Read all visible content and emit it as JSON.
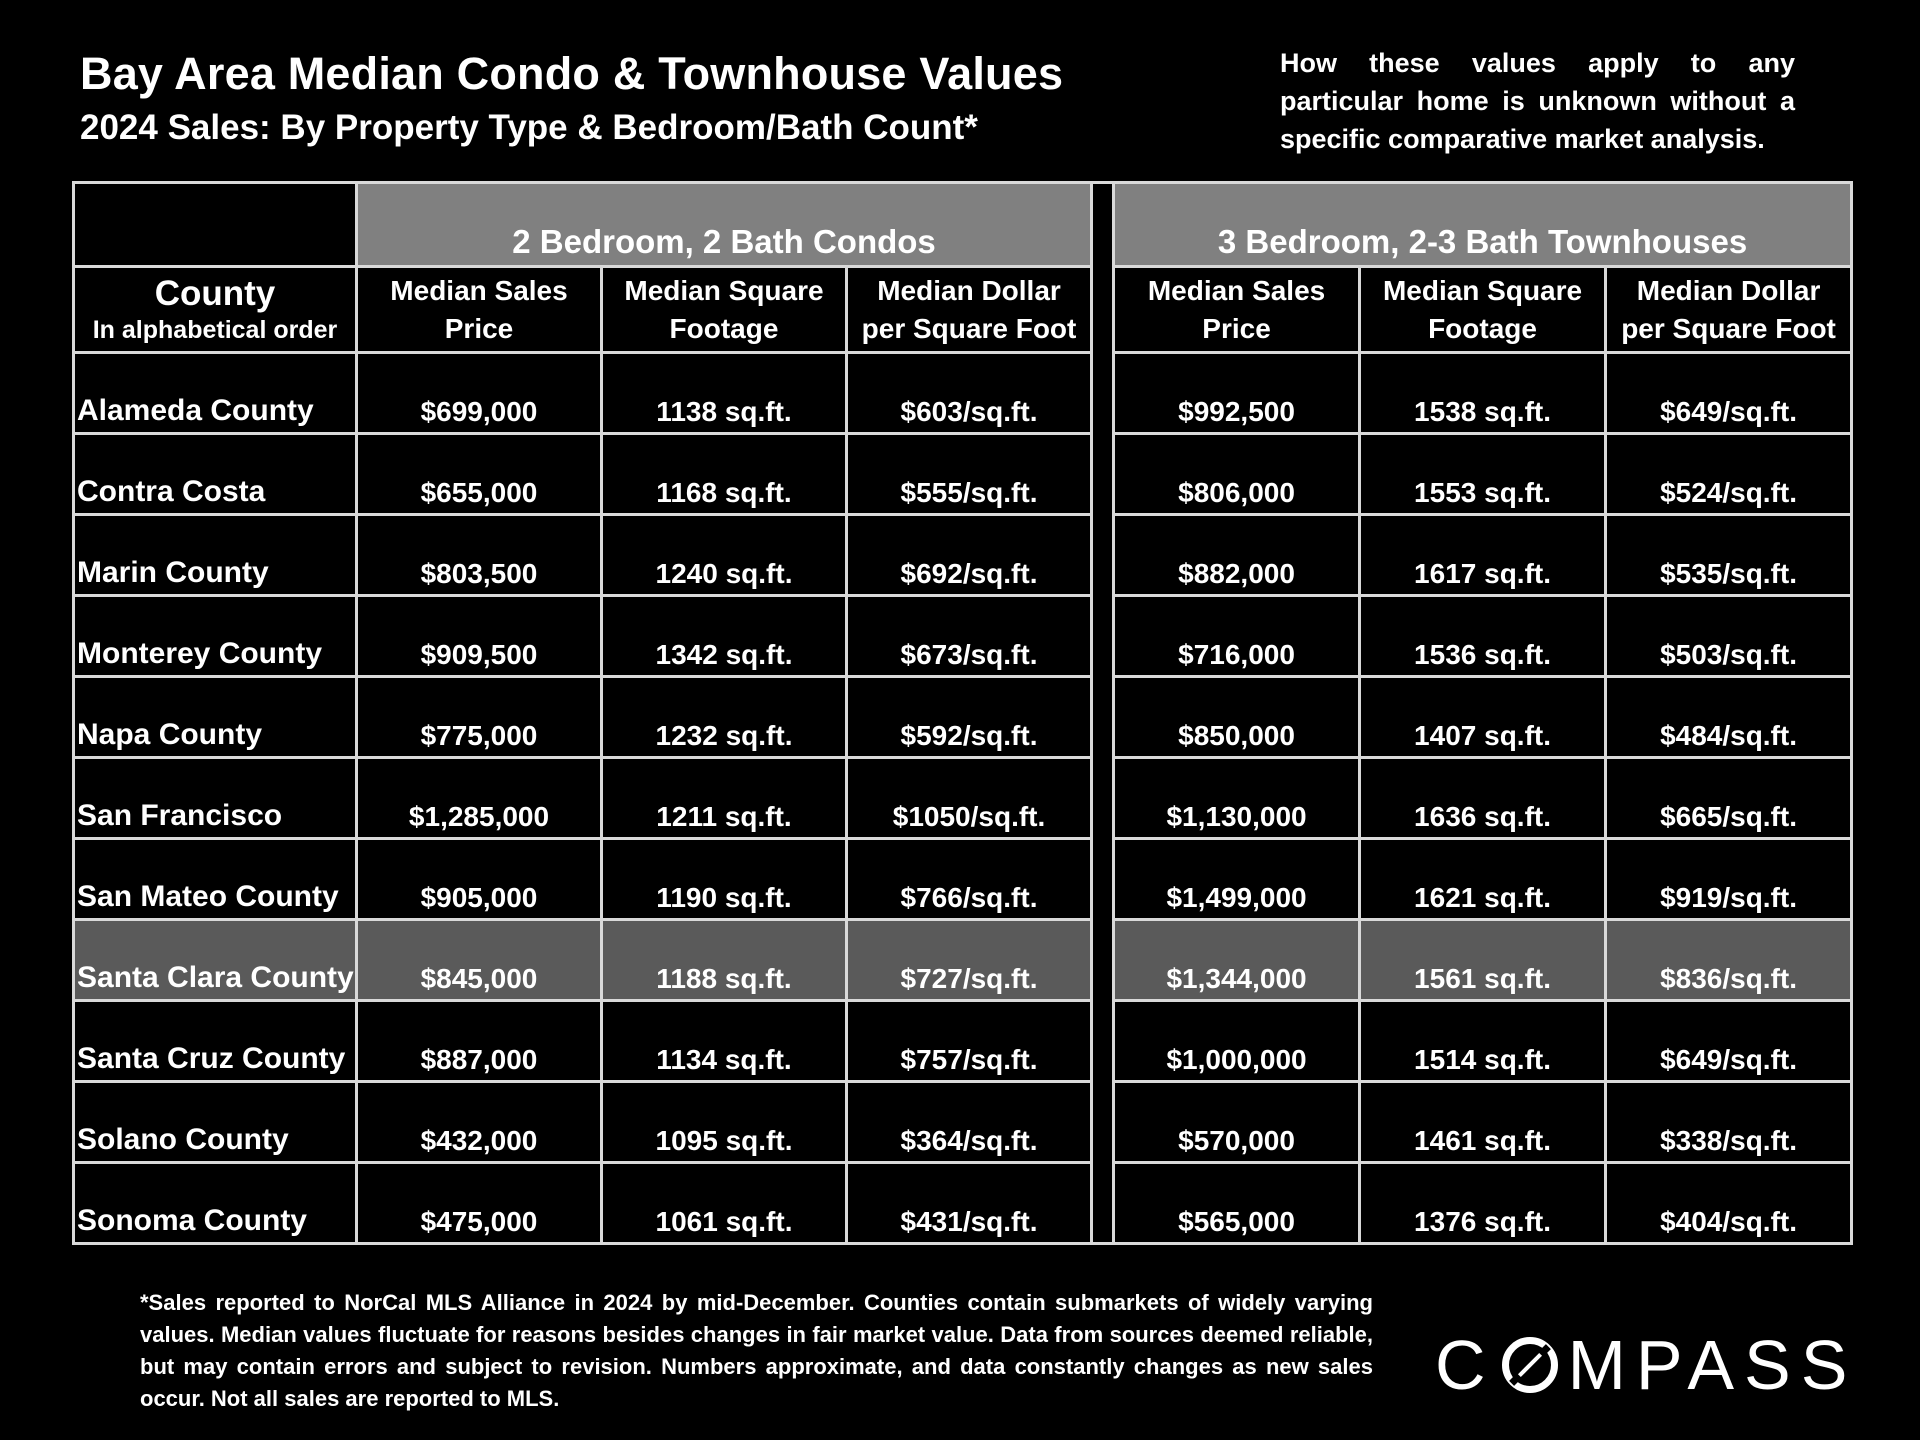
{
  "header": {
    "title": "Bay Area Median Condo & Townhouse Values",
    "subtitle": "2024 Sales:  By Property Type & Bedroom/Bath Count*",
    "disclaimer": "How these values apply to any particular home is unknown without a specific comparative market analysis."
  },
  "chart_data": {
    "type": "table",
    "groups": [
      "2 Bedroom, 2 Bath Condos",
      "3 Bedroom, 2-3 Bath Townhouses"
    ],
    "county_header": "County",
    "county_subheader": "In alphabetical order",
    "columns": [
      [
        "Median Sales",
        "Price"
      ],
      [
        "Median Square",
        "Footage"
      ],
      [
        "Median Dollar",
        "per Square Foot"
      ],
      [
        "Median Sales",
        "Price"
      ],
      [
        "Median Square",
        "Footage"
      ],
      [
        "Median Dollar",
        "per Square Foot"
      ]
    ],
    "rows": [
      {
        "county": "Alameda County",
        "values": [
          "$699,000",
          "1138 sq.ft.",
          "$603/sq.ft.",
          "$992,500",
          "1538 sq.ft.",
          "$649/sq.ft."
        ]
      },
      {
        "county": "Contra Costa",
        "values": [
          "$655,000",
          "1168 sq.ft.",
          "$555/sq.ft.",
          "$806,000",
          "1553 sq.ft.",
          "$524/sq.ft."
        ]
      },
      {
        "county": "Marin County",
        "values": [
          "$803,500",
          "1240 sq.ft.",
          "$692/sq.ft.",
          "$882,000",
          "1617 sq.ft.",
          "$535/sq.ft."
        ]
      },
      {
        "county": "Monterey County",
        "values": [
          "$909,500",
          "1342 sq.ft.",
          "$673/sq.ft.",
          "$716,000",
          "1536 sq.ft.",
          "$503/sq.ft."
        ]
      },
      {
        "county": "Napa County",
        "values": [
          "$775,000",
          "1232 sq.ft.",
          "$592/sq.ft.",
          "$850,000",
          "1407 sq.ft.",
          "$484/sq.ft."
        ]
      },
      {
        "county": "San Francisco",
        "values": [
          "$1,285,000",
          "1211 sq.ft.",
          "$1050/sq.ft.",
          "$1,130,000",
          "1636 sq.ft.",
          "$665/sq.ft."
        ]
      },
      {
        "county": "San Mateo County",
        "values": [
          "$905,000",
          "1190 sq.ft.",
          "$766/sq.ft.",
          "$1,499,000",
          "1621 sq.ft.",
          "$919/sq.ft."
        ]
      },
      {
        "county": "Santa Clara County",
        "values": [
          "$845,000",
          "1188 sq.ft.",
          "$727/sq.ft.",
          "$1,344,000",
          "1561 sq.ft.",
          "$836/sq.ft."
        ],
        "highlighted": true
      },
      {
        "county": "Santa Cruz County",
        "values": [
          "$887,000",
          "1134 sq.ft.",
          "$757/sq.ft.",
          "$1,000,000",
          "1514 sq.ft.",
          "$649/sq.ft."
        ]
      },
      {
        "county": "Solano County",
        "values": [
          "$432,000",
          "1095 sq.ft.",
          "$364/sq.ft.",
          "$570,000",
          "1461 sq.ft.",
          "$338/sq.ft."
        ]
      },
      {
        "county": "Sonoma County",
        "values": [
          "$475,000",
          "1061 sq.ft.",
          "$431/sq.ft.",
          "$565,000",
          "1376 sq.ft.",
          "$404/sq.ft."
        ]
      }
    ],
    "highlight_color": "#5a5a5a",
    "group_header_color": "#808080"
  },
  "footer": {
    "footnote": "*Sales reported to NorCal MLS Alliance in 2024 by mid-December. Counties contain submarkets of widely varying values. Median values fluctuate for reasons besides changes in fair market value. Data from sources deemed reliable, but may contain errors and subject to revision.  Numbers approximate, and data constantly changes as new sales occur. Not all sales are reported to MLS.",
    "logo_text": "COMPASS"
  }
}
